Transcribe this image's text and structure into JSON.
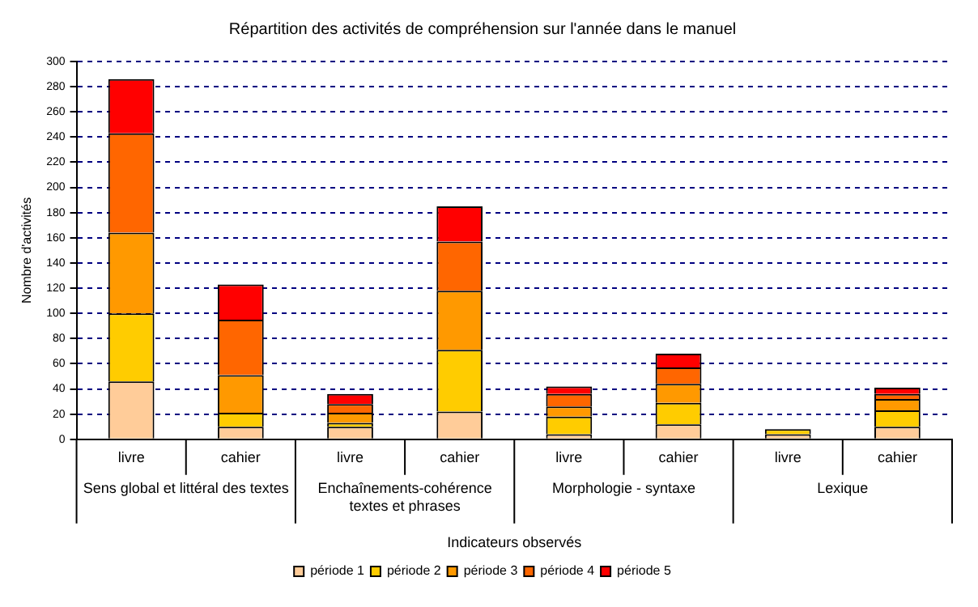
{
  "chart_data": {
    "type": "bar",
    "stacked": true,
    "title": "Répartition des activités de compréhension sur l'année dans le manuel",
    "xlabel": "Indicateurs observés",
    "ylabel": "Nombre d'activités",
    "categories": [
      "livre",
      "cahier",
      "livre",
      "cahier",
      "livre",
      "cahier",
      "livre",
      "cahier"
    ],
    "series": [
      {
        "name": "période 1",
        "color": "#ffcc99",
        "values": [
          46,
          10,
          10,
          22,
          4,
          12,
          4,
          10
        ]
      },
      {
        "name": "période 2",
        "color": "#ffcc00",
        "values": [
          54,
          11,
          3,
          49,
          14,
          17,
          4,
          13
        ]
      },
      {
        "name": "période 3",
        "color": "#ff9900",
        "values": [
          64,
          30,
          8,
          47,
          8,
          15,
          0,
          9
        ]
      },
      {
        "name": "période 4",
        "color": "#ff6600",
        "values": [
          79,
          44,
          7,
          39,
          10,
          13,
          0,
          4
        ]
      },
      {
        "name": "période 5",
        "color": "#ff0000",
        "values": [
          43,
          28,
          8,
          28,
          6,
          11,
          0,
          5
        ]
      }
    ],
    "annotations": [
      "Sens global et littéral des textes",
      "Enchaînements-cohérence textes et phrases",
      "Morphologie - syntaxe",
      "Lexique"
    ],
    "ylim": [
      0,
      300
    ],
    "yticks": [
      0,
      20,
      40,
      60,
      80,
      100,
      120,
      140,
      160,
      180,
      200,
      220,
      240,
      260,
      280,
      300
    ],
    "grid": "y",
    "legend": "bottom"
  }
}
